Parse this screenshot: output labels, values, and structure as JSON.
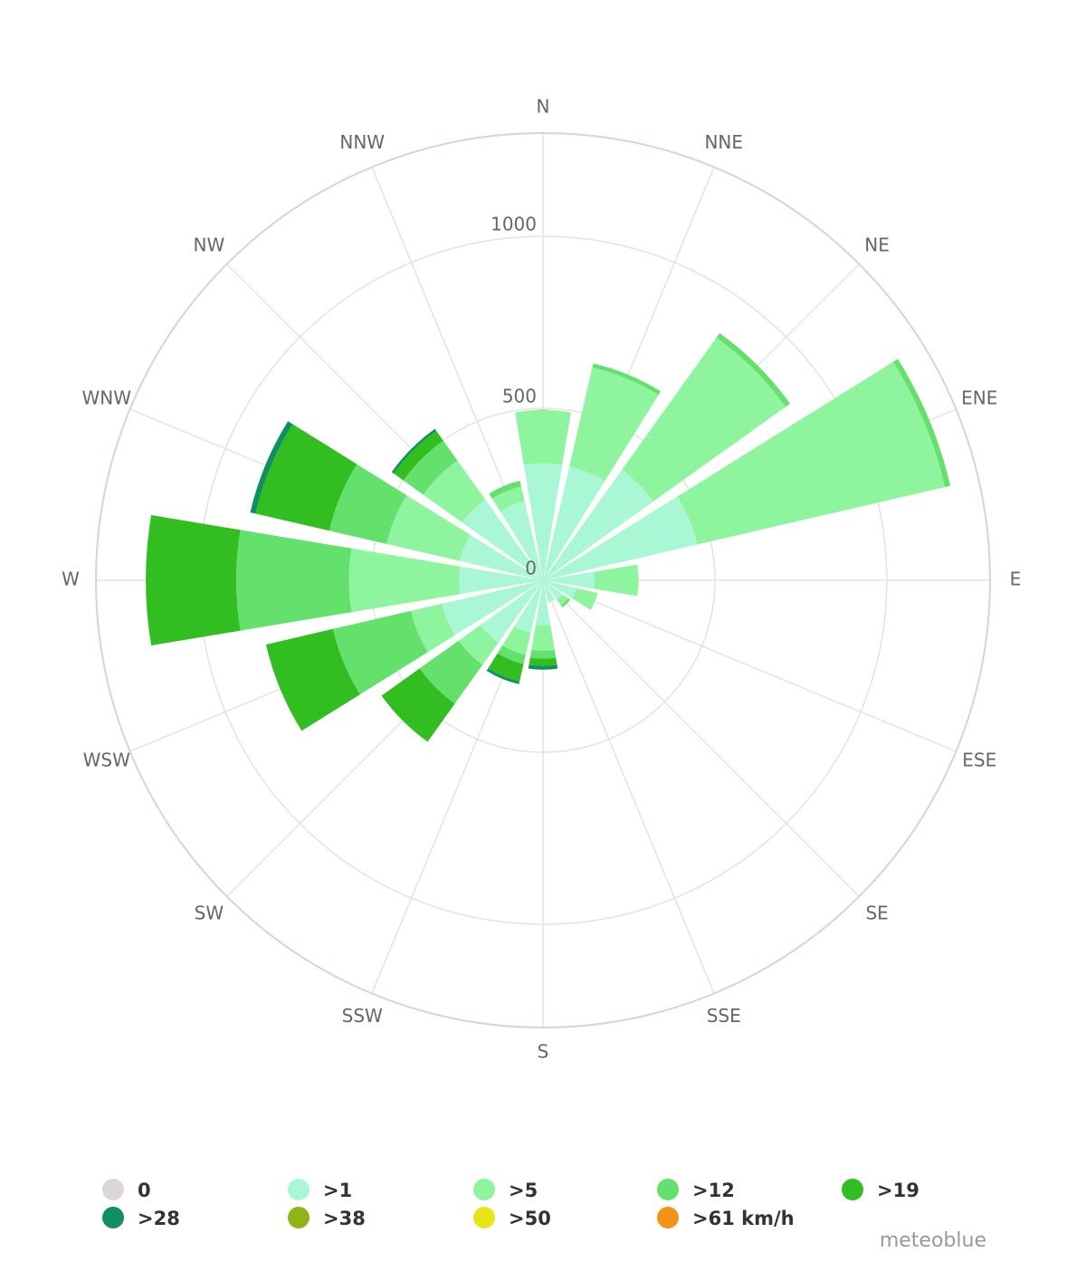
{
  "chart_data": {
    "type": "windrose",
    "categories": [
      "N",
      "NNE",
      "NE",
      "ENE",
      "E",
      "ESE",
      "SE",
      "SSE",
      "S",
      "SSW",
      "SW",
      "WSW",
      "W",
      "WNW",
      "NW",
      "NNW"
    ],
    "series": [
      {
        "name": "0",
        "color": "#dcd6d8",
        "values": [
          0,
          0,
          0,
          0,
          0,
          0,
          0,
          0,
          0,
          0,
          0,
          0,
          0,
          0,
          0,
          0
        ]
      },
      {
        "name": ">1",
        "color": "#aaf7d5",
        "values": [
          340,
          340,
          394,
          460,
          150,
          100,
          70,
          66,
          131,
          157,
          223,
          302,
          244,
          249,
          289,
          236
        ]
      },
      {
        "name": ">5",
        "color": "#8ef59e",
        "values": [
          155,
          295,
          473,
          740,
          128,
          63,
          20,
          0,
          74,
          66,
          79,
          92,
          320,
          218,
          139,
          44
        ]
      },
      {
        "name": ">12",
        "color": "#64e06c",
        "values": [
          0,
          12,
          16,
          16,
          0,
          0,
          7,
          0,
          23,
          27,
          139,
          233,
          328,
          171,
          71,
          17
        ]
      },
      {
        "name": ">19",
        "color": "#32be20",
        "values": [
          0,
          0,
          0,
          0,
          0,
          0,
          0,
          0,
          21,
          52,
          136,
          200,
          263,
          220,
          35,
          0
        ]
      },
      {
        "name": ">28",
        "color": "#118f5e",
        "values": [
          0,
          0,
          0,
          0,
          0,
          0,
          0,
          0,
          11,
          8,
          0,
          0,
          0,
          16,
          7,
          0
        ]
      },
      {
        "name": ">38",
        "color": "#8db516",
        "values": [
          0,
          0,
          0,
          0,
          0,
          0,
          0,
          0,
          0,
          0,
          0,
          0,
          0,
          0,
          0,
          0
        ]
      },
      {
        "name": ">50",
        "color": "#e6e619",
        "values": [
          0,
          0,
          0,
          0,
          0,
          0,
          0,
          0,
          0,
          0,
          0,
          0,
          0,
          0,
          0,
          0
        ]
      },
      {
        "name": ">61 km/h",
        "color": "#f59316",
        "values": [
          0,
          0,
          0,
          0,
          0,
          0,
          0,
          0,
          0,
          0,
          0,
          0,
          0,
          0,
          0,
          0
        ]
      }
    ],
    "ylim": [
      0,
      1300
    ],
    "yticks": [
      0,
      500,
      1000
    ],
    "grid": true,
    "watermark": "meteoblue"
  }
}
